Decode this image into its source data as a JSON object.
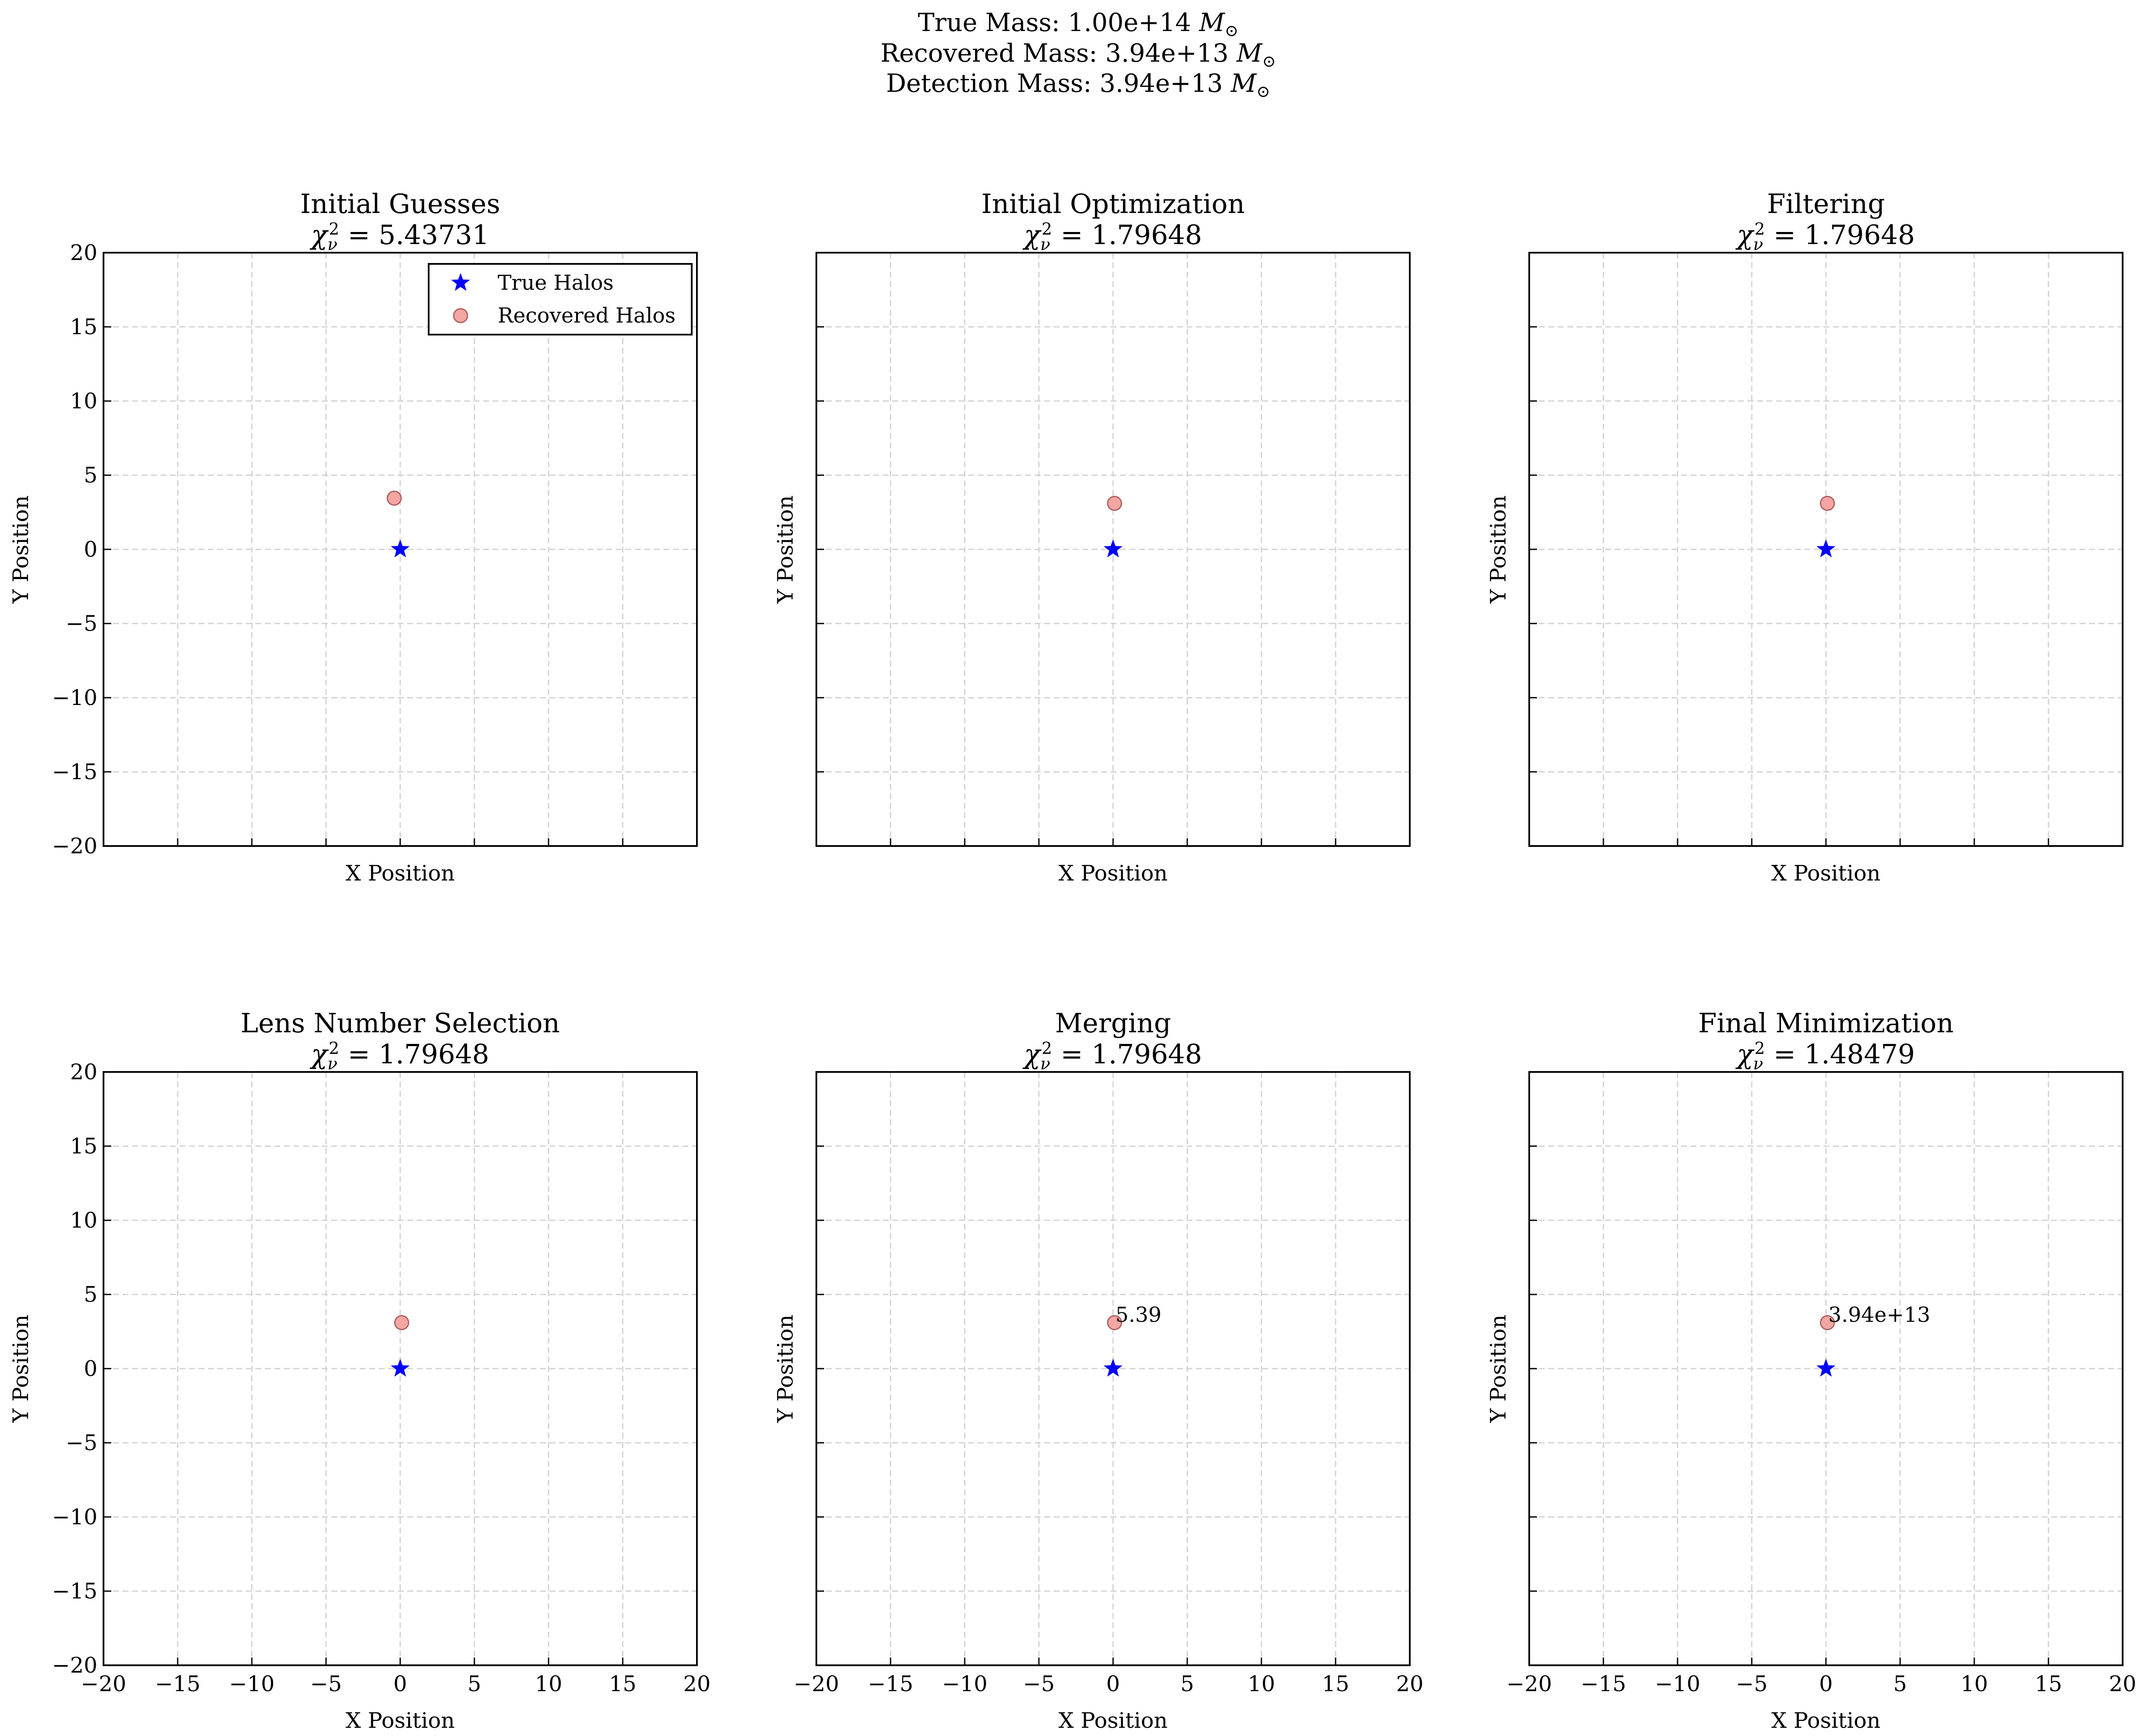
{
  "suptitle": {
    "line1_prefix": "True Mass: 1.00e+14 ",
    "line2_prefix": "Recovered Mass: 3.94e+13 ",
    "line3_prefix": "Detection Mass: 3.94e+13 ",
    "unit_symbol": "M",
    "unit_subscript": "⊙"
  },
  "chi_label": {
    "symbol": "χ",
    "sub": "ν",
    "sup": "2",
    "eq": " = "
  },
  "chart_data": [
    {
      "type": "scatter",
      "title": "Initial Guesses",
      "chi2": "5.43731",
      "xlabel": "X Position",
      "ylabel": "Y Position",
      "xlim": [
        -20,
        20
      ],
      "ylim": [
        -20,
        20
      ],
      "grid": true,
      "legend": "top-right",
      "series": [
        {
          "name": "True Halos",
          "marker": "star",
          "color": "#0000ff",
          "points": [
            {
              "x": 0,
              "y": 0
            }
          ]
        },
        {
          "name": "Recovered Halos",
          "marker": "circle",
          "color": "#f4a6a2",
          "points": [
            {
              "x": -0.4,
              "y": 3.45
            }
          ]
        }
      ],
      "annotations": []
    },
    {
      "type": "scatter",
      "title": "Initial Optimization",
      "chi2": "1.79648",
      "xlabel": "X Position",
      "ylabel": "Y Position",
      "xlim": [
        -20,
        20
      ],
      "ylim": [
        -20,
        20
      ],
      "grid": true,
      "series": [
        {
          "name": "True Halos",
          "marker": "star",
          "color": "#0000ff",
          "points": [
            {
              "x": 0,
              "y": 0
            }
          ]
        },
        {
          "name": "Recovered Halos",
          "marker": "circle",
          "color": "#f4a6a2",
          "points": [
            {
              "x": 0.1,
              "y": 3.1
            }
          ]
        }
      ],
      "annotations": []
    },
    {
      "type": "scatter",
      "title": "Filtering",
      "chi2": "1.79648",
      "xlabel": "X Position",
      "ylabel": "Y Position",
      "xlim": [
        -20,
        20
      ],
      "ylim": [
        -20,
        20
      ],
      "grid": true,
      "series": [
        {
          "name": "True Halos",
          "marker": "star",
          "color": "#0000ff",
          "points": [
            {
              "x": 0,
              "y": 0
            }
          ]
        },
        {
          "name": "Recovered Halos",
          "marker": "circle",
          "color": "#f4a6a2",
          "points": [
            {
              "x": 0.1,
              "y": 3.1
            }
          ]
        }
      ],
      "annotations": []
    },
    {
      "type": "scatter",
      "title": "Lens Number Selection",
      "chi2": "1.79648",
      "xlabel": "X Position",
      "ylabel": "Y Position",
      "xlim": [
        -20,
        20
      ],
      "ylim": [
        -20,
        20
      ],
      "grid": true,
      "series": [
        {
          "name": "True Halos",
          "marker": "star",
          "color": "#0000ff",
          "points": [
            {
              "x": 0,
              "y": 0
            }
          ]
        },
        {
          "name": "Recovered Halos",
          "marker": "circle",
          "color": "#f4a6a2",
          "points": [
            {
              "x": 0.1,
              "y": 3.1
            }
          ]
        }
      ],
      "annotations": []
    },
    {
      "type": "scatter",
      "title": "Merging",
      "chi2": "1.79648",
      "xlabel": "X Position",
      "ylabel": "Y Position",
      "xlim": [
        -20,
        20
      ],
      "ylim": [
        -20,
        20
      ],
      "grid": true,
      "series": [
        {
          "name": "True Halos",
          "marker": "star",
          "color": "#0000ff",
          "points": [
            {
              "x": 0,
              "y": 0
            }
          ]
        },
        {
          "name": "Recovered Halos",
          "marker": "circle",
          "color": "#f4a6a2",
          "points": [
            {
              "x": 0.1,
              "y": 3.1
            }
          ]
        }
      ],
      "annotations": [
        {
          "text": "5.39",
          "x": 0.1,
          "y": 3.1
        }
      ]
    },
    {
      "type": "scatter",
      "title": "Final Minimization",
      "chi2": "1.48479",
      "xlabel": "X Position",
      "ylabel": "Y Position",
      "xlim": [
        -20,
        20
      ],
      "ylim": [
        -20,
        20
      ],
      "grid": true,
      "series": [
        {
          "name": "True Halos",
          "marker": "star",
          "color": "#0000ff",
          "points": [
            {
              "x": 0,
              "y": 0
            }
          ]
        },
        {
          "name": "Recovered Halos",
          "marker": "circle",
          "color": "#f4a6a2",
          "points": [
            {
              "x": 0.1,
              "y": 3.1
            }
          ]
        }
      ],
      "annotations": [
        {
          "text": "3.94e+13",
          "x": 0.1,
          "y": 3.1
        }
      ]
    }
  ],
  "tick_values": [
    -20,
    -15,
    -10,
    -5,
    0,
    5,
    10,
    15,
    20
  ],
  "colors": {
    "grid": "#d3d3d3",
    "axis": "#000000",
    "marker_edge": "#b06060"
  }
}
